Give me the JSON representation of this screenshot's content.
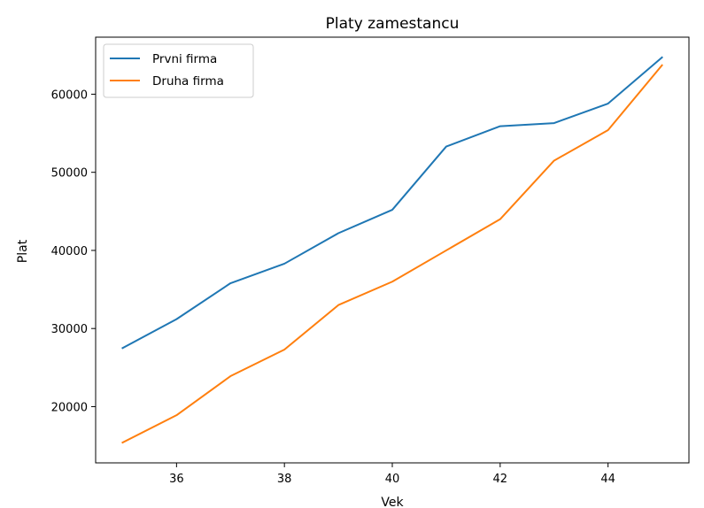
{
  "chart_data": {
    "type": "line",
    "title": "Platy zamestancu",
    "xlabel": "Vek",
    "ylabel": "Plat",
    "x": [
      35,
      36,
      37,
      38,
      39,
      40,
      41,
      42,
      43,
      44,
      45
    ],
    "series": [
      {
        "name": "Prvni firma",
        "color": "#1f77b4",
        "values": [
          27500,
          31200,
          35800,
          38300,
          42200,
          45200,
          53300,
          55900,
          56300,
          58800,
          64700
        ]
      },
      {
        "name": "Druha firma",
        "color": "#ff7f0e",
        "values": [
          15400,
          18900,
          23900,
          27300,
          33000,
          36000,
          40000,
          44000,
          51500,
          55400,
          63700
        ]
      }
    ],
    "xlim": [
      34.5,
      45.5
    ],
    "ylim": [
      12800,
      67300
    ],
    "x_ticks": [
      36,
      38,
      40,
      42,
      44
    ],
    "y_ticks": [
      20000,
      30000,
      40000,
      50000,
      60000
    ],
    "grid": false,
    "legend_position": "upper-left"
  }
}
